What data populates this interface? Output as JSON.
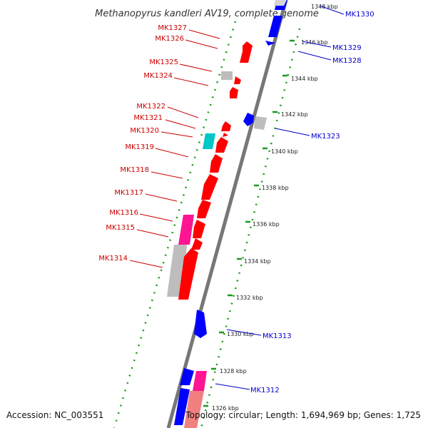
{
  "title": "Methanopyrus kandleri AV19, complete genome",
  "accession": "Accession: NC_003551",
  "topology": "Topology: circular; Length: 1,694,969 bp; Genes: 1,725",
  "colors": {
    "forward": "#ff0000",
    "reverse": "#0000ff",
    "pink": "#ff1493",
    "grey": "#bdbdbd",
    "teal": "#00c8c8",
    "backbone": "#777777",
    "ticks": "#1a9a1a",
    "label_red": "#cc0000",
    "label_blue": "#0000cc"
  },
  "left_labels": [
    "MK1327",
    "MK1326",
    "MK1325",
    "MK1324",
    "MK1322",
    "MK1321",
    "MK1320",
    "MK1319",
    "MK1318",
    "MK1317",
    "MK1316",
    "MK1315",
    "MK1314"
  ],
  "right_labels": [
    "MK1330",
    "MK1329",
    "MK1328",
    "MK1323",
    "MK1313",
    "MK1312"
  ],
  "kbp_ticks": [
    "1348 kbp",
    "1346 kbp",
    "1344 kbp",
    "1342 kbp",
    "1340 kbp",
    "1338 kbp",
    "1336 kbp",
    "1334 kbp",
    "1332 kbp",
    "1330 kbp",
    "1328 kbp",
    "1326 kbp"
  ]
}
